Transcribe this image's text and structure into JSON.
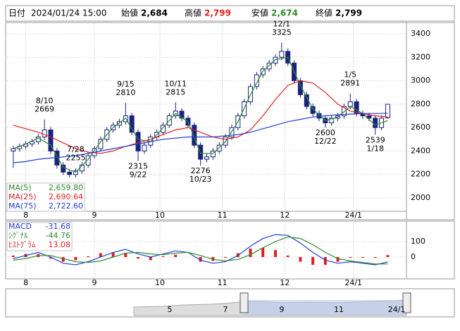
{
  "header": {
    "date_label": "日付",
    "date": "2024/01/24 15:00",
    "open_label": "始値",
    "open": "2,684",
    "high_label": "高値",
    "high": "2,799",
    "low_label": "安値",
    "low": "2,674",
    "close_label": "終値",
    "close": "2,799"
  },
  "chart_data": [
    {
      "type": "candlestick",
      "xlim": [
        -1,
        127
      ],
      "ylim": [
        1886,
        3490
      ],
      "grid": true,
      "xticks": [
        {
          "value": 5,
          "label": "8"
        },
        {
          "value": 27,
          "label": "9"
        },
        {
          "value": 48,
          "label": "10"
        },
        {
          "value": 68,
          "label": "11"
        },
        {
          "value": 88,
          "label": "12"
        },
        {
          "value": 110,
          "label": "24/1"
        }
      ],
      "yticks": [
        2000,
        2200,
        2400,
        2600,
        2800,
        3000,
        3200,
        3400
      ],
      "up_color": "#ffffff",
      "down_color": "#1a237e",
      "edge_color": "#1a237e",
      "x": [
        1,
        3,
        5,
        7,
        9,
        11,
        13,
        15,
        17,
        19,
        21,
        23,
        25,
        27,
        29,
        31,
        33,
        35,
        37,
        39,
        41,
        43,
        45,
        47,
        49,
        51,
        53,
        55,
        57,
        59,
        61,
        63,
        65,
        67,
        69,
        71,
        73,
        75,
        77,
        79,
        81,
        83,
        85,
        87,
        89,
        91,
        93,
        95,
        97,
        99,
        101,
        103,
        105,
        107,
        109,
        111,
        113,
        115,
        117,
        119,
        121
      ],
      "ohlc": [
        [
          2400,
          2445,
          2255,
          2420
        ],
        [
          2420,
          2465,
          2395,
          2440
        ],
        [
          2440,
          2485,
          2415,
          2460
        ],
        [
          2460,
          2505,
          2435,
          2480
        ],
        [
          2480,
          2545,
          2455,
          2520
        ],
        [
          2520,
          2669,
          2495,
          2580
        ],
        [
          2580,
          2605,
          2375,
          2400
        ],
        [
          2400,
          2425,
          2250,
          2280
        ],
        [
          2280,
          2305,
          2195,
          2220
        ],
        [
          2220,
          2245,
          2175,
          2200
        ],
        [
          2200,
          2255,
          2175,
          2230
        ],
        [
          2230,
          2305,
          2205,
          2280
        ],
        [
          2280,
          2385,
          2255,
          2360
        ],
        [
          2360,
          2445,
          2335,
          2420
        ],
        [
          2420,
          2525,
          2395,
          2500
        ],
        [
          2500,
          2605,
          2475,
          2580
        ],
        [
          2580,
          2645,
          2555,
          2620
        ],
        [
          2620,
          2675,
          2595,
          2650
        ],
        [
          2650,
          2810,
          2625,
          2700
        ],
        [
          2700,
          2725,
          2535,
          2560
        ],
        [
          2560,
          2585,
          2315,
          2400
        ],
        [
          2400,
          2475,
          2375,
          2450
        ],
        [
          2450,
          2545,
          2425,
          2520
        ],
        [
          2520,
          2585,
          2495,
          2560
        ],
        [
          2560,
          2645,
          2535,
          2620
        ],
        [
          2620,
          2725,
          2595,
          2700
        ],
        [
          2700,
          2815,
          2675,
          2740
        ],
        [
          2740,
          2765,
          2655,
          2680
        ],
        [
          2680,
          2705,
          2595,
          2620
        ],
        [
          2620,
          2645,
          2425,
          2450
        ],
        [
          2450,
          2475,
          2276,
          2330
        ],
        [
          2330,
          2375,
          2305,
          2350
        ],
        [
          2350,
          2425,
          2325,
          2400
        ],
        [
          2400,
          2475,
          2375,
          2450
        ],
        [
          2450,
          2545,
          2425,
          2520
        ],
        [
          2520,
          2625,
          2495,
          2600
        ],
        [
          2600,
          2725,
          2575,
          2700
        ],
        [
          2700,
          2845,
          2675,
          2820
        ],
        [
          2820,
          2975,
          2795,
          2950
        ],
        [
          2950,
          3075,
          2925,
          3050
        ],
        [
          3050,
          3125,
          3025,
          3100
        ],
        [
          3100,
          3175,
          3075,
          3150
        ],
        [
          3150,
          3225,
          3125,
          3200
        ],
        [
          3200,
          3325,
          3175,
          3250
        ],
        [
          3250,
          3275,
          3125,
          3150
        ],
        [
          3150,
          3175,
          2975,
          3000
        ],
        [
          3000,
          3025,
          2855,
          2880
        ],
        [
          2880,
          2905,
          2755,
          2780
        ],
        [
          2780,
          2805,
          2695,
          2720
        ],
        [
          2720,
          2745,
          2655,
          2680
        ],
        [
          2680,
          2705,
          2600,
          2640
        ],
        [
          2640,
          2705,
          2615,
          2680
        ],
        [
          2680,
          2725,
          2655,
          2700
        ],
        [
          2700,
          2805,
          2675,
          2780
        ],
        [
          2780,
          2891,
          2755,
          2820
        ],
        [
          2820,
          2845,
          2695,
          2720
        ],
        [
          2720,
          2745,
          2675,
          2700
        ],
        [
          2700,
          2725,
          2655,
          2680
        ],
        [
          2680,
          2705,
          2539,
          2600
        ],
        [
          2600,
          2705,
          2575,
          2680
        ],
        [
          2684,
          2799,
          2674,
          2799
        ]
      ],
      "annotations": [
        {
          "date": "7/28",
          "value": 2255
        },
        {
          "date": "8/10",
          "value": 2669
        },
        {
          "date": "9/15",
          "value": 2810
        },
        {
          "date": "9/22",
          "value": 2315
        },
        {
          "date": "10/11",
          "value": 2815
        },
        {
          "date": "10/23",
          "value": 2276
        },
        {
          "date": "12/1",
          "value": 3325
        },
        {
          "date": "12/22",
          "value": 2600
        },
        {
          "date": "1/5",
          "value": 2891
        },
        {
          "date": "1/18",
          "value": 2539
        }
      ],
      "series": [
        {
          "name": "MA(5)",
          "color": "#2e8b2e",
          "x": [
            1,
            5,
            9,
            13,
            17,
            21,
            25,
            29,
            33,
            37,
            41,
            45,
            49,
            53,
            57,
            61,
            65,
            69,
            73,
            77,
            81,
            85,
            89,
            93,
            97,
            101,
            105,
            109,
            113,
            117,
            121
          ],
          "values": [
            2420,
            2460,
            2510,
            2450,
            2260,
            2220,
            2330,
            2480,
            2600,
            2680,
            2500,
            2480,
            2600,
            2720,
            2650,
            2380,
            2380,
            2480,
            2650,
            2880,
            3080,
            3180,
            3200,
            2960,
            2760,
            2660,
            2690,
            2780,
            2720,
            2620,
            2659.8
          ],
          "value_labels": [
            null,
            null,
            null,
            null,
            null,
            null,
            null,
            null,
            null,
            null,
            null,
            null,
            null,
            null,
            null,
            null,
            null,
            null,
            null,
            null,
            null,
            null,
            null,
            null,
            null,
            null,
            null,
            null,
            null,
            null,
            "2,659.80"
          ]
        },
        {
          "name": "MA(25)",
          "color": "#e02020",
          "x": [
            1,
            5,
            9,
            13,
            17,
            21,
            25,
            29,
            33,
            37,
            41,
            45,
            49,
            53,
            57,
            61,
            65,
            69,
            73,
            77,
            81,
            85,
            89,
            93,
            97,
            101,
            105,
            109,
            113,
            117,
            121
          ],
          "values": [
            2620,
            2590,
            2560,
            2520,
            2470,
            2420,
            2390,
            2380,
            2400,
            2440,
            2470,
            2500,
            2540,
            2580,
            2600,
            2560,
            2520,
            2500,
            2520,
            2580,
            2700,
            2840,
            2960,
            3000,
            2980,
            2900,
            2800,
            2740,
            2720,
            2700,
            2690.64
          ],
          "value_labels": [
            null,
            null,
            null,
            null,
            null,
            null,
            null,
            null,
            null,
            null,
            null,
            null,
            null,
            null,
            null,
            null,
            null,
            null,
            null,
            null,
            null,
            null,
            null,
            null,
            null,
            null,
            null,
            null,
            null,
            null,
            "2,690.64"
          ]
        },
        {
          "name": "MA(75)",
          "color": "#1f3fd0",
          "x": [
            1,
            5,
            9,
            13,
            17,
            21,
            25,
            29,
            33,
            37,
            41,
            45,
            49,
            53,
            57,
            61,
            65,
            69,
            73,
            77,
            81,
            85,
            89,
            93,
            97,
            101,
            105,
            109,
            113,
            117,
            121
          ],
          "values": [
            2300,
            2310,
            2330,
            2340,
            2350,
            2360,
            2380,
            2400,
            2420,
            2440,
            2460,
            2480,
            2500,
            2510,
            2520,
            2520,
            2520,
            2530,
            2540,
            2560,
            2590,
            2620,
            2650,
            2670,
            2690,
            2700,
            2710,
            2715,
            2720,
            2720,
            2722.6
          ],
          "value_labels": [
            null,
            null,
            null,
            null,
            null,
            null,
            null,
            null,
            null,
            null,
            null,
            null,
            null,
            null,
            null,
            null,
            null,
            null,
            null,
            null,
            null,
            null,
            null,
            null,
            null,
            null,
            null,
            null,
            null,
            null,
            "2,722.60"
          ]
        }
      ]
    },
    {
      "type": "macd",
      "xlim": [
        -1,
        127
      ],
      "ylim": [
        -141,
        223
      ],
      "yticks": [
        0,
        100
      ],
      "xticks": [
        {
          "value": 5,
          "label": "8"
        },
        {
          "value": 27,
          "label": "9"
        },
        {
          "value": 48,
          "label": "10"
        },
        {
          "value": 68,
          "label": "11"
        },
        {
          "value": 88,
          "label": "12"
        },
        {
          "value": 110,
          "label": "24/1"
        }
      ],
      "x": [
        1,
        5,
        9,
        13,
        17,
        21,
        25,
        29,
        33,
        37,
        41,
        45,
        49,
        53,
        57,
        61,
        65,
        69,
        73,
        77,
        81,
        85,
        89,
        93,
        97,
        101,
        105,
        109,
        113,
        117,
        121
      ],
      "series": [
        {
          "name": "MACD",
          "color": "#1f3fd0",
          "kind": "line",
          "values": [
            -10,
            10,
            30,
            0,
            -40,
            -50,
            -30,
            0,
            30,
            50,
            20,
            0,
            20,
            40,
            30,
            -20,
            -40,
            -30,
            10,
            70,
            120,
            145,
            140,
            90,
            30,
            -20,
            -40,
            -30,
            -40,
            -50,
            -31.68
          ]
        },
        {
          "name": "ｼｸﾞﾅﾙ",
          "color": "#2e8b2e",
          "kind": "line",
          "values": [
            -20,
            -10,
            10,
            10,
            -10,
            -30,
            -35,
            -25,
            0,
            25,
            30,
            20,
            15,
            25,
            30,
            10,
            -15,
            -25,
            -15,
            15,
            60,
            100,
            130,
            120,
            80,
            30,
            -10,
            -25,
            -35,
            -45,
            -44.76
          ]
        },
        {
          "name": "ﾋｽﾄｸﾞﾗﾑ",
          "color": "#e02020",
          "kind": "bar",
          "values": [
            10,
            20,
            20,
            -10,
            -30,
            -20,
            5,
            25,
            30,
            25,
            -10,
            -20,
            5,
            15,
            0,
            -30,
            -25,
            -5,
            25,
            55,
            60,
            45,
            10,
            -30,
            -50,
            -50,
            -30,
            -5,
            -5,
            -5,
            13.08
          ]
        }
      ]
    }
  ],
  "navigator": {
    "labels": [
      "5",
      "7",
      "9",
      "11",
      "24/1"
    ]
  }
}
